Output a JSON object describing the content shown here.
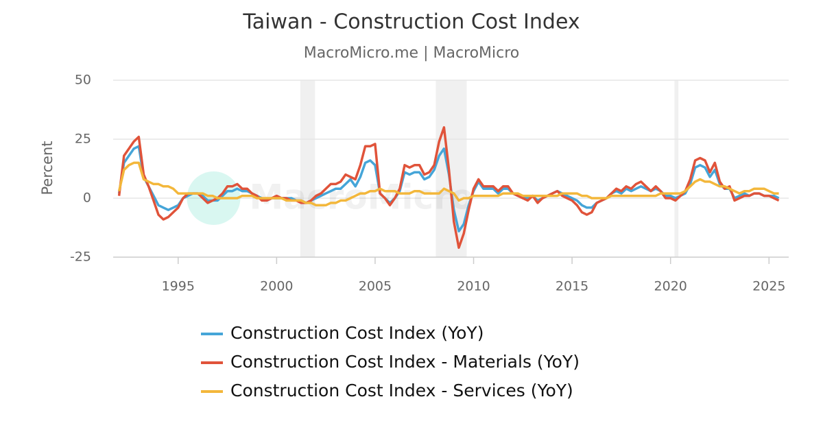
{
  "chart_data": {
    "type": "line",
    "title": "Taiwan - Construction Cost Index",
    "subtitle": "MacroMicro.me | MacroMicro",
    "watermark": "MacroMicro",
    "y_label": "Percent",
    "xlim": [
      1991.7,
      2026.0
    ],
    "ylim": [
      -25,
      50
    ],
    "xticks": [
      1995,
      2000,
      2005,
      2010,
      2015,
      2020,
      2025
    ],
    "yticks": [
      -25,
      0,
      25,
      50
    ],
    "grid": true,
    "legend": "bottom",
    "shaded_ranges": [
      [
        2001.2,
        2001.95
      ],
      [
        2008.08,
        2009.65
      ],
      [
        2020.2,
        2020.4
      ]
    ],
    "x": [
      1992,
      1992.25,
      1992.5,
      1992.75,
      1993,
      1993.25,
      1993.5,
      1993.75,
      1994,
      1994.25,
      1994.5,
      1994.75,
      1995,
      1995.25,
      1995.5,
      1995.75,
      1996,
      1996.25,
      1996.5,
      1996.75,
      1997,
      1997.25,
      1997.5,
      1997.75,
      1998,
      1998.25,
      1998.5,
      1998.75,
      1999,
      1999.25,
      1999.5,
      1999.75,
      2000,
      2000.25,
      2000.5,
      2000.75,
      2001,
      2001.25,
      2001.5,
      2001.75,
      2002,
      2002.25,
      2002.5,
      2002.75,
      2003,
      2003.25,
      2003.5,
      2003.75,
      2004,
      2004.25,
      2004.5,
      2004.75,
      2005,
      2005.25,
      2005.5,
      2005.75,
      2006,
      2006.25,
      2006.5,
      2006.75,
      2007,
      2007.25,
      2007.5,
      2007.75,
      2008,
      2008.25,
      2008.5,
      2008.75,
      2009,
      2009.25,
      2009.5,
      2009.75,
      2010,
      2010.25,
      2010.5,
      2010.75,
      2011,
      2011.25,
      2011.5,
      2011.75,
      2012,
      2012.25,
      2012.5,
      2012.75,
      2013,
      2013.25,
      2013.5,
      2013.75,
      2014,
      2014.25,
      2014.5,
      2014.75,
      2015,
      2015.25,
      2015.5,
      2015.75,
      2016,
      2016.25,
      2016.5,
      2016.75,
      2017,
      2017.25,
      2017.5,
      2017.75,
      2018,
      2018.25,
      2018.5,
      2018.75,
      2019,
      2019.25,
      2019.5,
      2019.75,
      2020,
      2020.25,
      2020.5,
      2020.75,
      2021,
      2021.25,
      2021.5,
      2021.75,
      2022,
      2022.25,
      2022.5,
      2022.75,
      2023,
      2023.25,
      2023.5,
      2023.75,
      2024,
      2024.25,
      2024.5,
      2024.75,
      2025,
      2025.25,
      2025.5
    ],
    "series": [
      {
        "name": "Construction Cost Index (YoY)",
        "color": "#45a5d8",
        "values": [
          2,
          15,
          18,
          21,
          22,
          9,
          5,
          1,
          -3,
          -4,
          -5,
          -4,
          -3,
          0,
          1,
          2,
          2,
          1,
          -1,
          -1,
          -1,
          1,
          3,
          3,
          4,
          3,
          3,
          2,
          1,
          0,
          -1,
          0,
          0,
          0,
          0,
          0,
          -1,
          -1,
          -2,
          -1,
          0,
          1,
          2,
          3,
          4,
          4,
          6,
          8,
          5,
          9,
          15,
          16,
          14,
          2,
          0,
          -2,
          0,
          3,
          11,
          10,
          11,
          11,
          8,
          9,
          12,
          18,
          21,
          10,
          -5,
          -14,
          -11,
          -3,
          3,
          7,
          4,
          4,
          4,
          2,
          4,
          4,
          2,
          1,
          1,
          0,
          1,
          -1,
          0,
          1,
          2,
          3,
          2,
          1,
          0,
          -1,
          -3,
          -4,
          -4,
          -2,
          -1,
          0,
          2,
          3,
          2,
          4,
          3,
          4,
          5,
          4,
          3,
          4,
          3,
          1,
          1,
          0,
          1,
          2,
          6,
          13,
          14,
          13,
          9,
          12,
          6,
          4,
          4,
          0,
          1,
          2,
          1,
          2,
          2,
          1,
          1,
          1,
          0
        ]
      },
      {
        "name": "Construction Cost Index - Materials (YoY)",
        "color": "#e0533a",
        "values": [
          1,
          18,
          21,
          24,
          26,
          10,
          5,
          -1,
          -7,
          -9,
          -8,
          -6,
          -4,
          0,
          2,
          2,
          2,
          0,
          -2,
          -1,
          0,
          2,
          5,
          5,
          6,
          4,
          4,
          2,
          1,
          -1,
          -1,
          0,
          1,
          0,
          0,
          -1,
          -1,
          -2,
          -2,
          -1,
          1,
          2,
          4,
          6,
          6,
          7,
          10,
          9,
          8,
          14,
          22,
          22,
          23,
          2,
          0,
          -3,
          0,
          4,
          14,
          13,
          14,
          14,
          10,
          11,
          14,
          24,
          30,
          12,
          -10,
          -21,
          -15,
          -5,
          4,
          8,
          5,
          5,
          5,
          3,
          5,
          5,
          2,
          1,
          0,
          -1,
          1,
          -2,
          0,
          1,
          2,
          3,
          1,
          0,
          -1,
          -3,
          -6,
          -7,
          -6,
          -2,
          -1,
          0,
          2,
          4,
          3,
          5,
          4,
          6,
          7,
          5,
          3,
          5,
          3,
          0,
          0,
          -1,
          1,
          3,
          8,
          16,
          17,
          16,
          11,
          15,
          7,
          4,
          5,
          -1,
          0,
          1,
          1,
          2,
          2,
          1,
          1,
          0,
          -1
        ]
      },
      {
        "name": "Construction Cost Index - Services (YoY)",
        "color": "#f3b73b",
        "values": [
          3,
          12,
          14,
          15,
          15,
          8,
          7,
          6,
          6,
          5,
          5,
          4,
          2,
          2,
          2,
          2,
          2,
          2,
          1,
          1,
          0,
          0,
          0,
          0,
          0,
          1,
          1,
          1,
          0,
          0,
          0,
          0,
          0,
          0,
          -1,
          -1,
          -1,
          -1,
          -2,
          -2,
          -3,
          -3,
          -3,
          -2,
          -2,
          -1,
          -1,
          0,
          1,
          2,
          2,
          3,
          3,
          4,
          3,
          3,
          3,
          2,
          2,
          2,
          3,
          3,
          2,
          2,
          2,
          2,
          4,
          3,
          2,
          -1,
          0,
          0,
          1,
          1,
          1,
          1,
          1,
          1,
          2,
          2,
          2,
          2,
          1,
          1,
          1,
          1,
          1,
          1,
          1,
          1,
          2,
          2,
          2,
          2,
          1,
          1,
          0,
          0,
          0,
          0,
          1,
          1,
          1,
          1,
          1,
          1,
          1,
          1,
          1,
          1,
          2,
          2,
          2,
          2,
          2,
          3,
          5,
          7,
          8,
          7,
          7,
          6,
          5,
          5,
          4,
          3,
          2,
          3,
          3,
          4,
          4,
          4,
          3,
          2,
          2
        ]
      }
    ]
  }
}
